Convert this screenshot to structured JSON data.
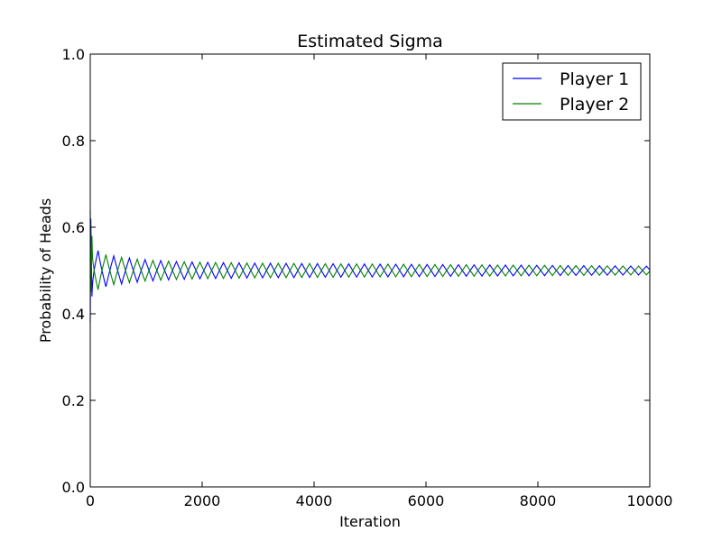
{
  "chart_data": {
    "type": "line",
    "title": "Estimated Sigma",
    "xlabel": "Iteration",
    "ylabel": "Probability of Heads",
    "xlim": [
      0,
      10000
    ],
    "ylim": [
      0.0,
      1.0
    ],
    "x_ticks": [
      0,
      2000,
      4000,
      6000,
      8000,
      10000
    ],
    "x_tick_labels": [
      "0",
      "2000",
      "4000",
      "6000",
      "8000",
      "10000"
    ],
    "y_ticks": [
      0.0,
      0.2,
      0.4,
      0.6,
      0.8,
      1.0
    ],
    "y_tick_labels": [
      "0.0",
      "0.2",
      "0.4",
      "0.6",
      "0.8",
      "1.0"
    ],
    "grid": false,
    "legend_position": "top-right",
    "series": [
      {
        "name": "Player 1",
        "color": "#0000ff",
        "x": [
          0,
          10,
          30,
          60,
          100,
          200,
          400,
          700,
          1000,
          1500,
          2000,
          3000,
          4000,
          5000,
          6000,
          7000,
          8000,
          9000,
          10000
        ],
        "y": [
          0.38,
          0.62,
          0.44,
          0.57,
          0.45,
          0.55,
          0.47,
          0.53,
          0.48,
          0.52,
          0.485,
          0.515,
          0.488,
          0.512,
          0.49,
          0.51,
          0.492,
          0.508,
          0.505
        ],
        "envelope_amplitude": [
          0.25,
          0.12,
          0.08,
          0.06,
          0.05,
          0.04,
          0.034,
          0.029,
          0.025,
          0.021,
          0.019,
          0.017,
          0.016,
          0.015,
          0.014,
          0.013,
          0.012,
          0.011,
          0.01
        ],
        "oscillation_period": 280,
        "phase": 0
      },
      {
        "name": "Player 2",
        "color": "#008000",
        "x": [
          0,
          10,
          30,
          60,
          100,
          200,
          400,
          700,
          1000,
          1500,
          2000,
          3000,
          4000,
          5000,
          6000,
          7000,
          8000,
          9000,
          10000
        ],
        "y": [
          0.64,
          0.45,
          0.58,
          0.46,
          0.56,
          0.47,
          0.53,
          0.48,
          0.52,
          0.485,
          0.515,
          0.488,
          0.512,
          0.49,
          0.51,
          0.492,
          0.508,
          0.494,
          0.5
        ],
        "envelope_amplitude": [
          0.22,
          0.11,
          0.075,
          0.058,
          0.048,
          0.039,
          0.033,
          0.028,
          0.024,
          0.021,
          0.019,
          0.017,
          0.016,
          0.015,
          0.014,
          0.013,
          0.012,
          0.011,
          0.01
        ],
        "oscillation_period": 280,
        "phase": 0.5
      }
    ]
  }
}
